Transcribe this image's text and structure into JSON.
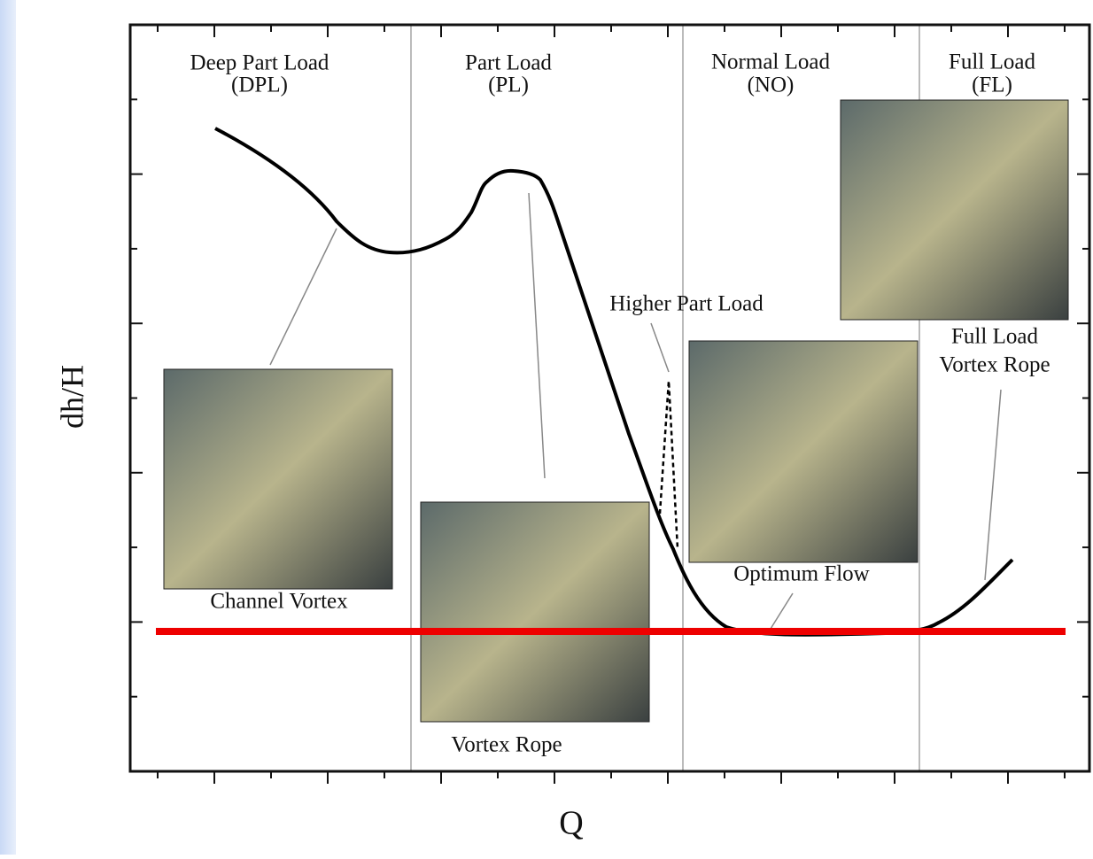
{
  "axes": {
    "y_label": "dh/H",
    "x_label": "Q"
  },
  "regions": [
    {
      "name": "Deep Part Load",
      "abbr": "(DPL)"
    },
    {
      "name": "Part Load",
      "abbr": "(PL)"
    },
    {
      "name": "Normal Load",
      "abbr": "(NO)"
    },
    {
      "name": "Full Load",
      "abbr": "(FL)"
    }
  ],
  "annotations": {
    "channel_vortex": "Channel Vortex",
    "vortex_rope": "Vortex Rope",
    "higher_part_load": "Higher Part Load",
    "optimum_flow": "Optimum Flow",
    "full_load_vortex_rope": [
      "Full Load",
      "Vortex Rope"
    ]
  }
}
